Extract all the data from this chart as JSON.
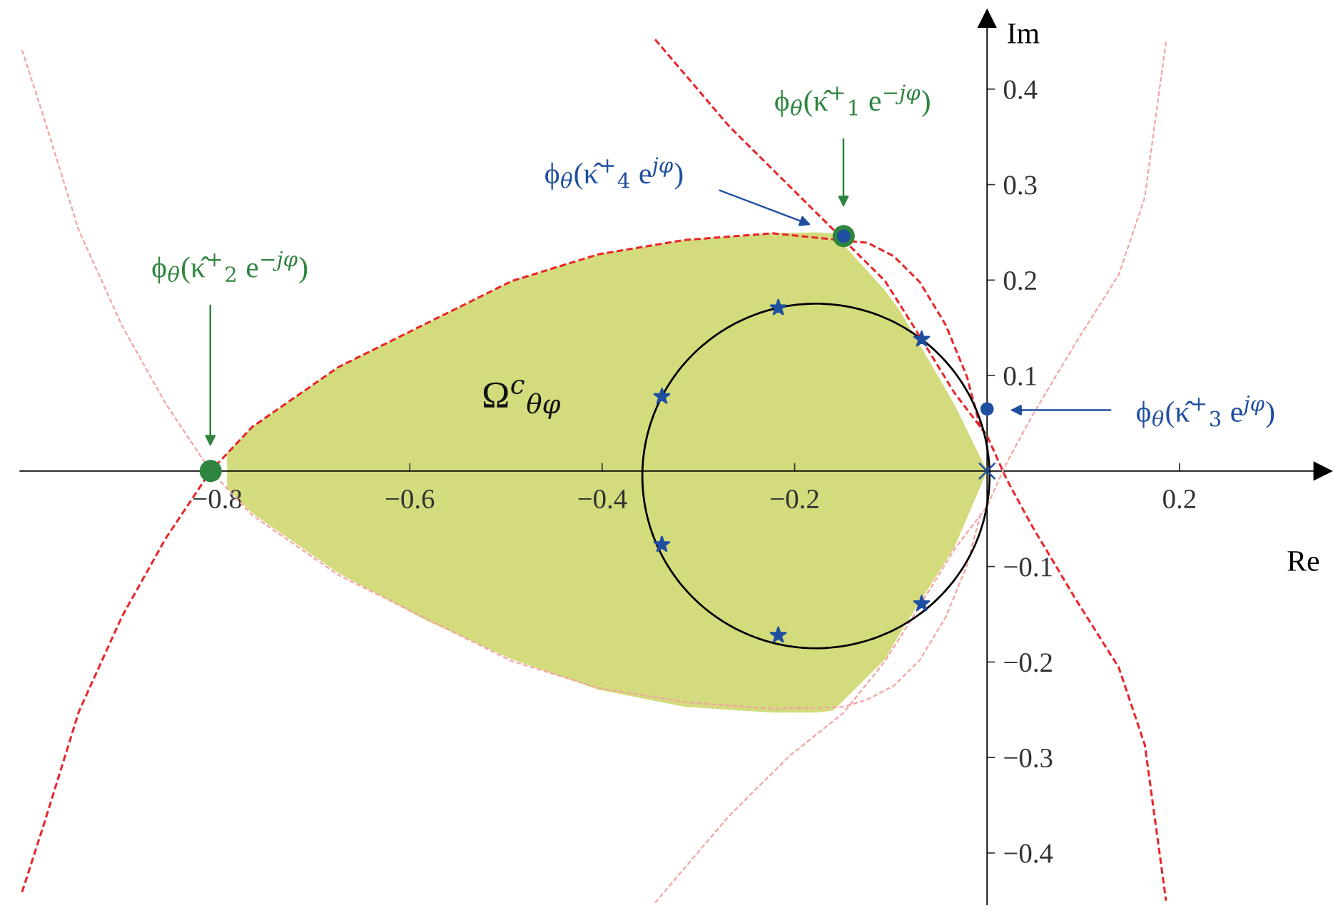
{
  "chart_data": {
    "type": "line",
    "xlabel": "Re",
    "ylabel": "Im",
    "xlim": [
      -1.005,
      0.349
    ],
    "ylim": [
      -0.454,
      0.474
    ],
    "xticks": [
      -0.8,
      -0.6,
      -0.4,
      -0.2,
      0.2
    ],
    "yticks": [
      -0.4,
      -0.3,
      -0.2,
      -0.1,
      0.1,
      0.2,
      0.3,
      0.4
    ],
    "grid": false,
    "legend": false,
    "series": [
      {
        "type": "area",
        "color": "#d3db7d",
        "x": [
          -0.79,
          -0.764,
          -0.674,
          -0.584,
          -0.494,
          -0.404,
          -0.314,
          -0.223,
          -0.178,
          -0.16,
          -0.106,
          -0.09,
          -0.034,
          0
        ],
        "values": [
          0.019,
          0.046,
          0.109,
          0.154,
          0.199,
          0.227,
          0.242,
          0.249,
          0.25,
          0.249,
          0.189,
          0.167,
          0.07,
          0
        ]
      },
      {
        "type": "area",
        "color": "#d3db7d",
        "x": [
          -0.79,
          -0.764,
          -0.674,
          -0.584,
          -0.494,
          -0.404,
          -0.314,
          -0.223,
          -0.178,
          -0.16,
          -0.106,
          -0.09,
          -0.034,
          0
        ],
        "values": [
          -0.018,
          -0.044,
          -0.107,
          -0.156,
          -0.197,
          -0.229,
          -0.247,
          -0.253,
          -0.253,
          -0.251,
          -0.197,
          -0.169,
          -0.08,
          0
        ]
      },
      {
        "type": "line",
        "color": "#f4a3a3",
        "line_style": "dashed",
        "x": [
          -1.003,
          -0.98,
          -0.944,
          -0.899,
          -0.854,
          -0.807,
          -0.764,
          -0.674,
          -0.584,
          -0.494,
          -0.404,
          -0.314,
          -0.223,
          -0.149,
          -0.124,
          -0.097,
          -0.07,
          -0.043,
          -0.021,
          -0.007
        ],
        "values": [
          0.441,
          0.369,
          0.252,
          0.152,
          0.071,
          0,
          -0.046,
          -0.109,
          -0.154,
          -0.199,
          -0.227,
          -0.242,
          -0.249,
          -0.247,
          -0.239,
          -0.225,
          -0.198,
          -0.153,
          -0.099,
          -0.046
        ]
      },
      {
        "color": "#f4a3a3",
        "line_style": "dashed",
        "x": [
          -0.345,
          -0.268,
          -0.205,
          -0.149,
          -0.106,
          -0.068,
          -0.034,
          0,
          0.02,
          0.047,
          0.092,
          0.137,
          0.164,
          0.186
        ],
        "values": [
          -0.452,
          -0.361,
          -0.298,
          -0.253,
          -0.199,
          -0.138,
          -0.082,
          -0.037,
          0.008,
          0.058,
          0.134,
          0.206,
          0.287,
          0.45
        ]
      },
      {
        "type": "line",
        "color": "#e8262a",
        "line_style": "dashed",
        "x": [
          -1.003,
          -0.98,
          -0.944,
          -0.899,
          -0.854,
          -0.807,
          -0.764,
          -0.674,
          -0.584,
          -0.494,
          -0.404,
          -0.314,
          -0.223,
          -0.124,
          -0.097,
          -0.07,
          -0.043,
          -0.021,
          -0.007
        ],
        "values": [
          -0.441,
          -0.369,
          -0.252,
          -0.152,
          -0.071,
          0,
          0.046,
          0.109,
          0.154,
          0.199,
          0.227,
          0.242,
          0.249,
          0.239,
          0.225,
          0.198,
          0.153,
          0.099,
          0.046
        ]
      },
      {
        "type": "line",
        "color": "#e8262a",
        "line_style": "dashed",
        "x": [
          -0.345,
          -0.268,
          -0.205,
          -0.106,
          -0.068,
          -0.034,
          0,
          0.02,
          0.047,
          0.092,
          0.137,
          0.164,
          0.186
        ],
        "values": [
          0.452,
          0.361,
          0.298,
          0.199,
          0.138,
          0.082,
          0.037,
          -0.008,
          -0.058,
          -0.134,
          -0.206,
          -0.287,
          -0.45
        ]
      },
      {
        "type": "scatter",
        "marker": "star",
        "color": "#1f4fa0",
        "x": [
          -0.217,
          -0.068,
          -0.338,
          -0.338,
          -0.217,
          -0.068
        ],
        "values": [
          0.171,
          0.138,
          0.078,
          -0.077,
          -0.172,
          -0.139
        ]
      },
      {
        "type": "scatter",
        "marker": "cross",
        "color": "#1f4fa0",
        "x": [
          0
        ],
        "values": [
          0
        ]
      },
      {
        "type": "scatter",
        "marker": "circle",
        "color": "#2f8540",
        "x": [
          -0.807,
          -0.149
        ],
        "values": [
          0,
          0.246
        ]
      },
      {
        "type": "scatter",
        "marker": "circle",
        "color": "#1f4fa0",
        "x": [
          -0.149,
          0
        ],
        "values": [
          0.246,
          0.065
        ]
      }
    ],
    "annotations": [
      "ϕ$_{θ}$(κ̂$^{+}$$_{1}$ e$^{−jφ}$)",
      "ϕ$_{θ}$(κ̂$^{+}$$_{4}$ e$^{jφ}$)",
      "ϕ$_{θ}$(κ̂$^{+}$$_{2}$ e$^{−jφ}$)",
      "ϕ$_{θ}$(κ̂$^{+}$$_{3}$ e$^{jφ}$)",
      "Ω$^{c}$$_{θφ}$"
    ]
  }
}
